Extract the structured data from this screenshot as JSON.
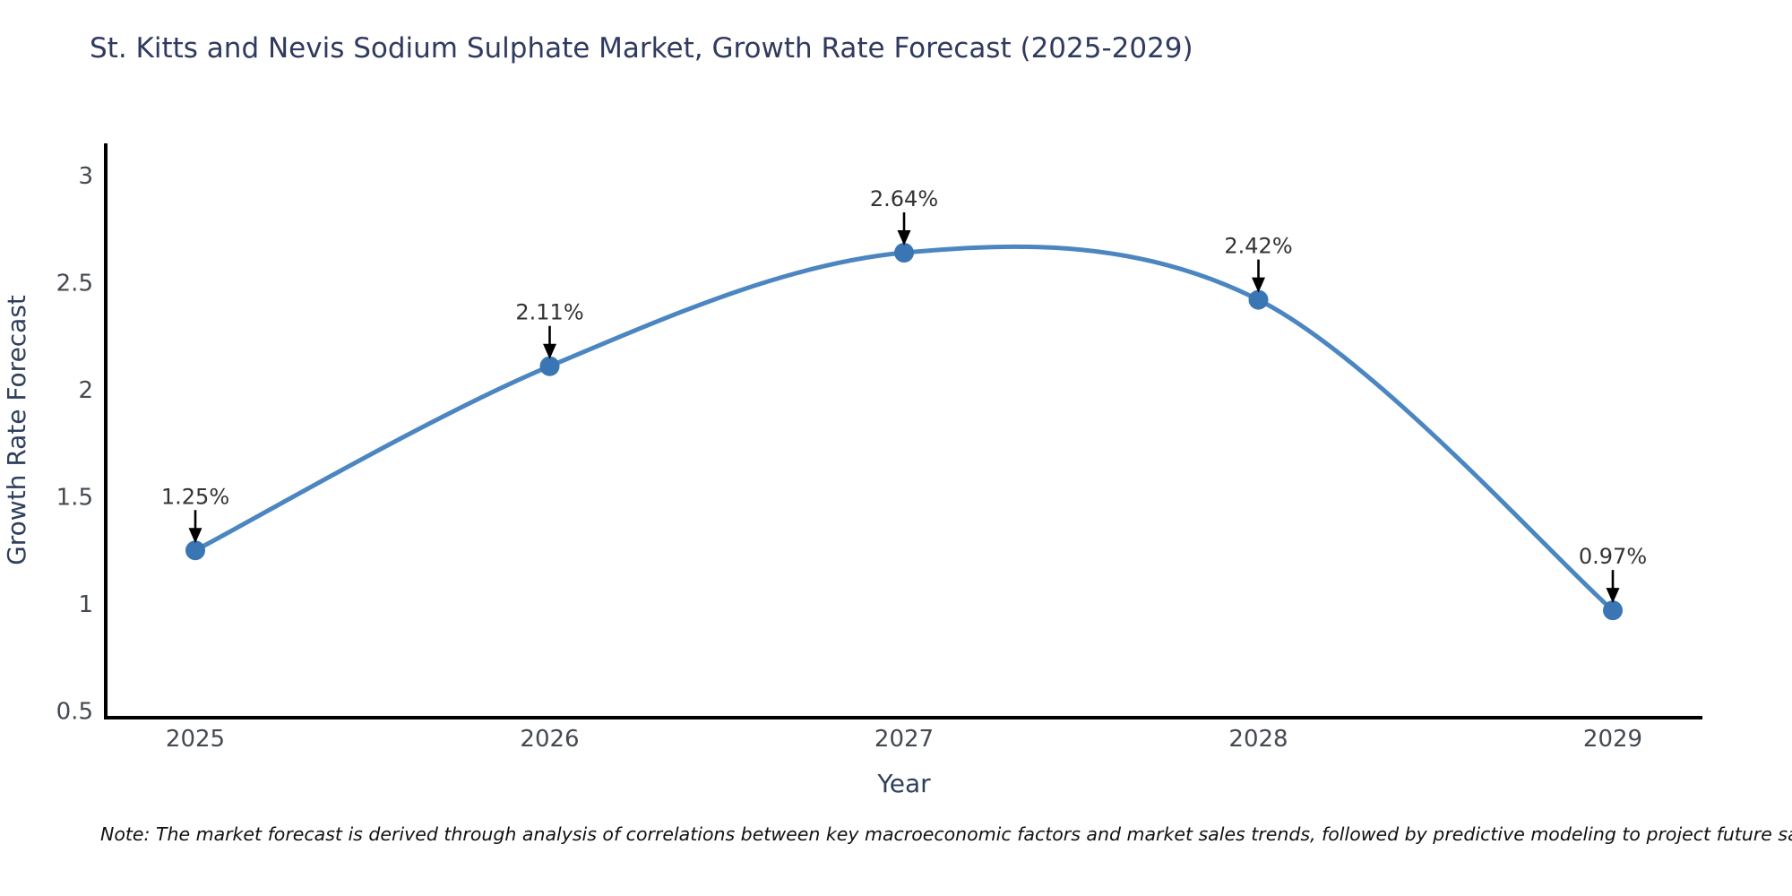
{
  "title": "St. Kitts and Nevis Sodium Sulphate Market, Growth Rate Forecast (2025-2029)",
  "note": "Note: The market forecast is derived through analysis of correlations between key macroeconomic factors and market sales trends, followed by predictive modeling to project future sales",
  "chart_data": {
    "type": "line",
    "line_shape": "spline",
    "title": "St. Kitts and Nevis Sodium Sulphate Market, Growth Rate Forecast (2025-2029)",
    "xlabel": "Year",
    "ylabel": "Growth Rate Forecast",
    "categories": [
      "2025",
      "2026",
      "2027",
      "2028",
      "2029"
    ],
    "series": [
      {
        "name": "Growth Rate Forecast",
        "values": [
          1.25,
          2.11,
          2.64,
          2.42,
          0.97
        ]
      }
    ],
    "point_labels": [
      "1.25%",
      "2.11%",
      "2.64%",
      "2.42%",
      "0.97%"
    ],
    "annotation_arrows": true,
    "ytick_labels": [
      "3",
      "2.5",
      "2",
      "1.5",
      "1",
      "0.5"
    ],
    "ytick_values": [
      3,
      2.5,
      2,
      1.5,
      1,
      0.5
    ],
    "ylim": [
      0.46,
      3.14
    ],
    "grid": false,
    "legend": "none",
    "markers": true,
    "colors": {
      "line": "#4b86c1",
      "marker": "#3a76b4",
      "axis_line": "#000000",
      "tick_text": "#444951",
      "axis_title_text": "#2f3f5c",
      "title_text": "#2f3a5e",
      "annotation_text": "#333333",
      "arrow": "#000000",
      "background": "#ffffff"
    }
  }
}
